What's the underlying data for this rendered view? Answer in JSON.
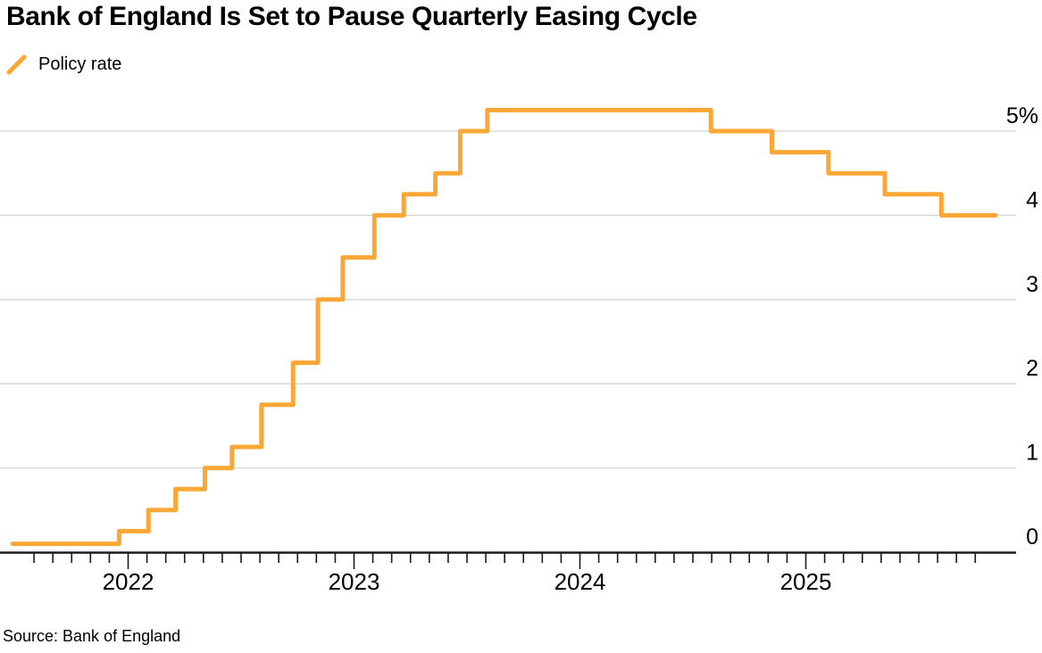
{
  "title": "Bank of England Is Set to Pause Quarterly Easing Cycle",
  "legend": {
    "label": "Policy rate"
  },
  "source": "Source: Bank of England",
  "colors": {
    "line": "#FBA735",
    "grid": "#D5D5D5",
    "axis": "#1B1B1B",
    "label": "#000000"
  },
  "chart_data": {
    "type": "line",
    "subtype": "step-after",
    "title": "Bank of England Is Set to Pause Quarterly Easing Cycle",
    "legend_position": "top-left",
    "grid": "horizontal-only",
    "y_axis_side": "right",
    "ylim": [
      0,
      5.45
    ],
    "xlim_decimal_years": [
      2021.49,
      2025.84
    ],
    "yticks": [
      {
        "label": "5%",
        "value": 5
      },
      {
        "label": "4",
        "value": 4
      },
      {
        "label": "3",
        "value": 3
      },
      {
        "label": "2",
        "value": 2
      },
      {
        "label": "1",
        "value": 1
      },
      {
        "label": "0",
        "value": 0
      }
    ],
    "xticks_major": [
      {
        "label": "2022",
        "t": 2022
      },
      {
        "label": "2023",
        "t": 2023
      },
      {
        "label": "2024",
        "t": 2024
      },
      {
        "label": "2025",
        "t": 2025
      }
    ],
    "xticks_minor_monthly": {
      "from_year": 2021,
      "from_month": 8,
      "to_year": 2025,
      "to_month": 10
    },
    "series": [
      {
        "name": "Policy rate",
        "unit": "%",
        "points": [
          {
            "date": "mid 2021",
            "t": 2021.49,
            "rate": 0.1
          },
          {
            "date": "Dec 2021",
            "t": 2021.96,
            "rate": 0.25
          },
          {
            "date": "Feb 2022",
            "t": 2022.09,
            "rate": 0.5
          },
          {
            "date": "Mar 2022",
            "t": 2022.21,
            "rate": 0.75
          },
          {
            "date": "May 2022",
            "t": 2022.34,
            "rate": 1.0
          },
          {
            "date": "Jun 2022",
            "t": 2022.46,
            "rate": 1.25
          },
          {
            "date": "Aug 2022",
            "t": 2022.59,
            "rate": 1.75
          },
          {
            "date": "Sep 2022",
            "t": 2022.73,
            "rate": 2.25
          },
          {
            "date": "Nov 2022",
            "t": 2022.84,
            "rate": 3.0
          },
          {
            "date": "Dec 2022",
            "t": 2022.95,
            "rate": 3.5
          },
          {
            "date": "Feb 2023",
            "t": 2023.09,
            "rate": 4.0
          },
          {
            "date": "Mar 2023",
            "t": 2023.22,
            "rate": 4.25
          },
          {
            "date": "May 2023",
            "t": 2023.36,
            "rate": 4.5
          },
          {
            "date": "Jun 2023",
            "t": 2023.47,
            "rate": 5.0
          },
          {
            "date": "Aug 2023",
            "t": 2023.59,
            "rate": 5.25
          },
          {
            "date": "Aug 2024",
            "t": 2024.58,
            "rate": 5.0
          },
          {
            "date": "Nov 2024",
            "t": 2024.85,
            "rate": 4.75
          },
          {
            "date": "Feb 2025",
            "t": 2025.1,
            "rate": 4.5
          },
          {
            "date": "May 2025",
            "t": 2025.35,
            "rate": 4.25
          },
          {
            "date": "Aug 2025",
            "t": 2025.6,
            "rate": 4.0
          },
          {
            "date": "late 2025",
            "t": 2025.84,
            "rate": 4.0
          }
        ]
      }
    ]
  }
}
